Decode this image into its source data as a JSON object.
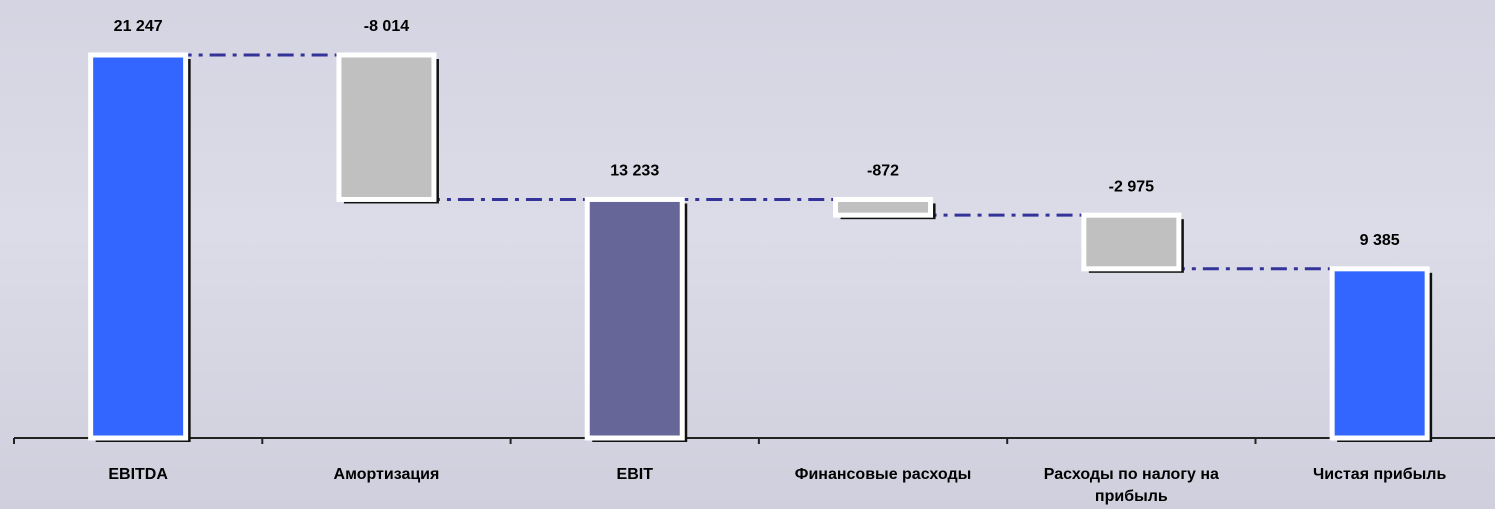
{
  "chart_data": {
    "type": "waterfall",
    "categories": [
      "EBITDA",
      "Амортизация",
      "EBIT",
      "Финансовые расходы",
      "Расходы по налогу на прибыль",
      "Чистая прибыль"
    ],
    "values": [
      21247,
      -8014,
      13233,
      -872,
      -2975,
      9385
    ],
    "value_labels": [
      "21 247",
      "-8 014",
      "13 233",
      "-872",
      "-2 975",
      "9 385"
    ],
    "colors": [
      "#3366ff",
      "#c0c0c0",
      "#666699",
      "#c0c0c0",
      "#c0c0c0",
      "#3366ff"
    ],
    "connector_color": "#333399"
  }
}
